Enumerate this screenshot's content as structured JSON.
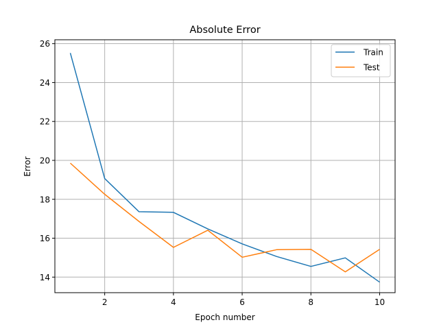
{
  "chart_data": {
    "type": "line",
    "title": "Absolute Error",
    "xlabel": "Epoch number",
    "ylabel": "Error",
    "x": [
      1,
      2,
      3,
      4,
      5,
      6,
      7,
      8,
      9,
      10
    ],
    "xlim": [
      0.55,
      10.45
    ],
    "ylim": [
      13.2,
      26.2
    ],
    "xticks": [
      2,
      4,
      6,
      8,
      10
    ],
    "yticks": [
      14,
      16,
      18,
      20,
      22,
      24,
      26
    ],
    "grid": true,
    "legend": "top-right",
    "series": [
      {
        "name": "Train",
        "color": "#1f77b4",
        "values": [
          25.52,
          19.07,
          17.36,
          17.33,
          16.48,
          15.71,
          15.06,
          14.55,
          14.99,
          13.74
        ]
      },
      {
        "name": "Test",
        "color": "#ff7f0e",
        "values": [
          19.86,
          18.26,
          16.86,
          15.53,
          16.41,
          15.02,
          15.41,
          15.43,
          14.27,
          15.43
        ]
      }
    ]
  }
}
